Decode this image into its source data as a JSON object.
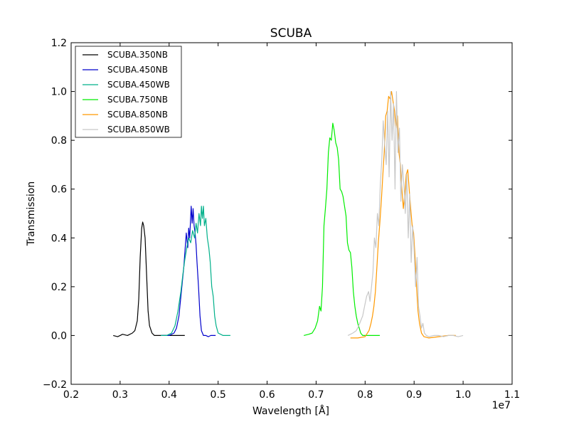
{
  "chart_data": {
    "type": "line",
    "title": "SCUBA",
    "xlabel": "Wavelength [Å]",
    "ylabel": "Transmission",
    "x_offset_label": "1e7",
    "xlim": [
      0.2,
      1.1
    ],
    "ylim": [
      -0.2,
      1.2
    ],
    "x_ticks": [
      "0.2",
      "0.3",
      "0.4",
      "0.5",
      "0.6",
      "0.7",
      "0.8",
      "0.9",
      "1.0",
      "1.1"
    ],
    "y_ticks": [
      "−0.2",
      "0.0",
      "0.2",
      "0.4",
      "0.6",
      "0.8",
      "1.0",
      "1.2"
    ],
    "grid": false,
    "legend_position": "top-left",
    "series": [
      {
        "name": "SCUBA.350NB",
        "color": "#000000",
        "x": [
          0.286,
          0.295,
          0.3,
          0.305,
          0.315,
          0.325,
          0.33,
          0.335,
          0.338,
          0.341,
          0.344,
          0.346,
          0.348,
          0.351,
          0.354,
          0.357,
          0.36,
          0.365,
          0.37,
          0.38,
          0.395,
          0.41,
          0.425,
          0.432
        ],
        "y": [
          0.0,
          -0.005,
          0.0,
          0.005,
          0.0,
          0.01,
          0.02,
          0.06,
          0.15,
          0.32,
          0.44,
          0.465,
          0.45,
          0.4,
          0.25,
          0.1,
          0.04,
          0.01,
          0.0,
          0.0,
          0.0,
          0.0,
          0.0,
          0.0
        ]
      },
      {
        "name": "SCUBA.450NB",
        "color": "#0000cc",
        "x": [
          0.385,
          0.4,
          0.41,
          0.415,
          0.42,
          0.425,
          0.43,
          0.435,
          0.438,
          0.44,
          0.442,
          0.445,
          0.447,
          0.449,
          0.451,
          0.453,
          0.455,
          0.457,
          0.46,
          0.463,
          0.466,
          0.47,
          0.475,
          0.48,
          0.485,
          0.49,
          0.495
        ],
        "y": [
          0.0,
          0.0,
          0.01,
          0.03,
          0.08,
          0.18,
          0.28,
          0.42,
          0.36,
          0.44,
          0.4,
          0.53,
          0.46,
          0.52,
          0.45,
          0.42,
          0.37,
          0.3,
          0.2,
          0.08,
          0.02,
          0.0,
          0.0,
          -0.005,
          0.0,
          0.0,
          0.0
        ]
      },
      {
        "name": "SCUBA.450WB",
        "color": "#00b08a",
        "x": [
          0.383,
          0.395,
          0.405,
          0.412,
          0.418,
          0.424,
          0.428,
          0.432,
          0.436,
          0.44,
          0.444,
          0.448,
          0.452,
          0.455,
          0.458,
          0.461,
          0.464,
          0.466,
          0.468,
          0.47,
          0.472,
          0.475,
          0.478,
          0.481,
          0.484,
          0.487,
          0.49,
          0.493,
          0.496,
          0.5,
          0.505,
          0.51,
          0.52,
          0.525
        ],
        "y": [
          0.0,
          0.0,
          0.01,
          0.04,
          0.1,
          0.18,
          0.25,
          0.31,
          0.36,
          0.4,
          0.38,
          0.43,
          0.4,
          0.46,
          0.42,
          0.5,
          0.45,
          0.53,
          0.48,
          0.53,
          0.45,
          0.48,
          0.4,
          0.36,
          0.3,
          0.2,
          0.16,
          0.08,
          0.04,
          0.01,
          0.005,
          0.0,
          0.0,
          0.0
        ]
      },
      {
        "name": "SCUBA.750NB",
        "color": "#00ee00",
        "x": [
          0.675,
          0.685,
          0.692,
          0.698,
          0.703,
          0.707,
          0.71,
          0.713,
          0.716,
          0.719,
          0.722,
          0.725,
          0.728,
          0.731,
          0.734,
          0.737,
          0.74,
          0.743,
          0.746,
          0.749,
          0.752,
          0.755,
          0.758,
          0.761,
          0.764,
          0.767,
          0.77,
          0.773,
          0.776,
          0.779,
          0.782,
          0.785,
          0.788,
          0.791,
          0.795,
          0.8,
          0.81,
          0.82,
          0.83
        ],
        "y": [
          0.0,
          0.005,
          0.01,
          0.03,
          0.06,
          0.12,
          0.1,
          0.2,
          0.45,
          0.52,
          0.6,
          0.75,
          0.81,
          0.8,
          0.87,
          0.84,
          0.79,
          0.77,
          0.72,
          0.6,
          0.59,
          0.57,
          0.53,
          0.49,
          0.38,
          0.35,
          0.34,
          0.28,
          0.18,
          0.12,
          0.08,
          0.05,
          0.03,
          0.01,
          0.0,
          0.0,
          0.0,
          0.0,
          0.0
        ]
      },
      {
        "name": "SCUBA.850NB",
        "color": "#ff9900",
        "x": [
          0.77,
          0.785,
          0.8,
          0.808,
          0.812,
          0.815,
          0.818,
          0.821,
          0.824,
          0.827,
          0.83,
          0.833,
          0.836,
          0.839,
          0.842,
          0.845,
          0.848,
          0.851,
          0.854,
          0.857,
          0.86,
          0.863,
          0.866,
          0.869,
          0.872,
          0.875,
          0.878,
          0.881,
          0.884,
          0.887,
          0.89,
          0.893,
          0.896,
          0.899,
          0.902,
          0.905,
          0.908,
          0.911,
          0.915,
          0.92,
          0.93,
          0.95,
          0.97,
          0.985
        ],
        "y": [
          -0.01,
          -0.01,
          -0.005,
          0.02,
          0.05,
          0.08,
          0.12,
          0.18,
          0.28,
          0.38,
          0.46,
          0.55,
          0.65,
          0.75,
          0.9,
          0.92,
          0.98,
          0.97,
          1.0,
          0.96,
          0.92,
          0.85,
          0.9,
          0.75,
          0.7,
          0.6,
          0.52,
          0.58,
          0.66,
          0.68,
          0.6,
          0.52,
          0.45,
          0.42,
          0.32,
          0.2,
          0.1,
          0.05,
          0.01,
          -0.005,
          -0.01,
          -0.005,
          0.0,
          0.0
        ]
      },
      {
        "name": "SCUBA.850WB",
        "color": "#c8c8c8",
        "x": [
          0.765,
          0.775,
          0.782,
          0.787,
          0.791,
          0.795,
          0.799,
          0.803,
          0.807,
          0.81,
          0.813,
          0.816,
          0.819,
          0.822,
          0.825,
          0.828,
          0.831,
          0.834,
          0.837,
          0.84,
          0.843,
          0.846,
          0.849,
          0.852,
          0.855,
          0.858,
          0.861,
          0.864,
          0.867,
          0.87,
          0.873,
          0.876,
          0.879,
          0.882,
          0.885,
          0.888,
          0.891,
          0.894,
          0.897,
          0.9,
          0.903,
          0.906,
          0.909,
          0.912,
          0.915,
          0.918,
          0.921,
          0.925,
          0.93,
          0.94,
          0.95,
          0.96,
          0.97,
          0.98,
          0.99,
          1.0
        ],
        "y": [
          0.0,
          0.01,
          0.02,
          0.04,
          0.06,
          0.08,
          0.12,
          0.16,
          0.18,
          0.14,
          0.2,
          0.26,
          0.4,
          0.36,
          0.5,
          0.45,
          0.62,
          0.72,
          0.88,
          0.78,
          0.7,
          0.92,
          0.65,
          1.0,
          0.8,
          0.95,
          0.6,
          1.0,
          0.75,
          0.85,
          0.55,
          0.7,
          0.62,
          0.5,
          0.66,
          0.4,
          0.58,
          0.3,
          0.45,
          0.35,
          0.2,
          0.32,
          0.12,
          0.08,
          0.03,
          0.05,
          0.01,
          0.0,
          -0.005,
          0.0,
          0.0,
          -0.005,
          0.0,
          0.0,
          -0.005,
          0.0
        ]
      }
    ]
  }
}
